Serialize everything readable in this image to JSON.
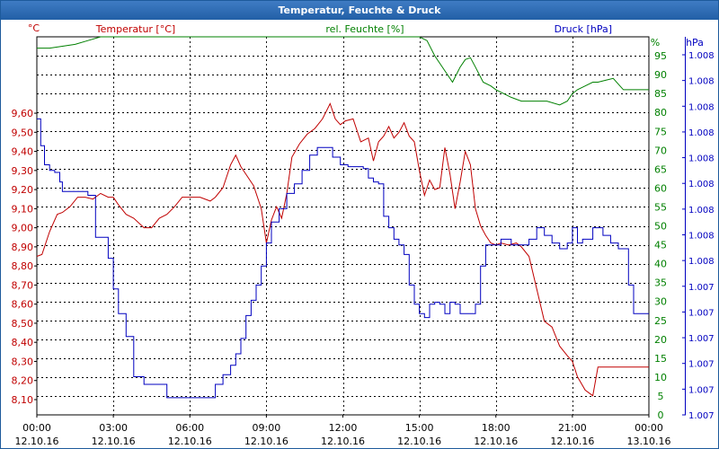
{
  "window": {
    "title": "Temperatur, Feuchte & Druck"
  },
  "colors": {
    "temperature": "#c00000",
    "humidity": "#008000",
    "pressure": "#0000c0",
    "title_bar": "#2d68ae",
    "grid": "#000000"
  },
  "chart_data": {
    "type": "line",
    "title": "Temperatur, Feuchte & Druck",
    "xlabel": "",
    "grid": true,
    "x_range": [
      "2016-10-12 00:00",
      "2016-10-13 00:00"
    ],
    "x_tick_labels": [
      {
        "time": "00:00",
        "date": "12.10.16"
      },
      {
        "time": "03:00",
        "date": "12.10.16"
      },
      {
        "time": "06:00",
        "date": "12.10.16"
      },
      {
        "time": "09:00",
        "date": "12.10.16"
      },
      {
        "time": "12:00",
        "date": "12.10.16"
      },
      {
        "time": "15:00",
        "date": "12.10.16"
      },
      {
        "time": "18:00",
        "date": "12.10.16"
      },
      {
        "time": "21:00",
        "date": "12.10.16"
      },
      {
        "time": "00:00",
        "date": "13.10.16"
      }
    ],
    "axes": {
      "temperature": {
        "label": "Temperatur [°C]",
        "unit": "°C",
        "ylim": [
          8.02,
          10.0
        ],
        "tick_labels": [
          "9,60",
          "9,50",
          "9,40",
          "9,30",
          "9,20",
          "9,10",
          "9,00",
          "8,90",
          "8,80",
          "8,70",
          "8,60",
          "8,50",
          "8,40",
          "8,30",
          "8,20",
          "8,10"
        ]
      },
      "humidity": {
        "label": "rel. Feuchte [%]",
        "unit": "%",
        "ylim": [
          0,
          100
        ],
        "tick_labels": [
          "95",
          "90",
          "85",
          "80",
          "75",
          "70",
          "65",
          "60",
          "55",
          "50",
          "45",
          "40",
          "35",
          "30",
          "25",
          "20",
          "15",
          "10",
          "5",
          "0"
        ]
      },
      "pressure": {
        "label": "Druck [hPa]",
        "unit": "hPa",
        "tick_labels": [
          "1.008",
          "1.008",
          "1.008",
          "1.008",
          "1.008",
          "1.008",
          "1.008",
          "1.008",
          "1.008",
          "1.007",
          "1.007",
          "1.007",
          "1.007",
          "1.007",
          "1.007"
        ]
      }
    },
    "series": [
      {
        "name": "Temperatur [°C]",
        "axis": "temperature",
        "x_hours": [
          0,
          0.2,
          0.5,
          0.8,
          1.0,
          1.3,
          1.6,
          1.9,
          2.2,
          2.5,
          2.8,
          3.0,
          3.2,
          3.5,
          3.8,
          4.2,
          4.5,
          4.8,
          5.1,
          5.4,
          5.7,
          6.0,
          6.4,
          6.8,
          7.0,
          7.3,
          7.6,
          7.8,
          8.0,
          8.2,
          8.5,
          8.8,
          9.0,
          9.2,
          9.4,
          9.6,
          9.8,
          10.0,
          10.3,
          10.6,
          10.9,
          11.2,
          11.5,
          11.7,
          11.9,
          12.1,
          12.4,
          12.7,
          13.0,
          13.2,
          13.4,
          13.6,
          13.8,
          14.0,
          14.2,
          14.4,
          14.6,
          14.8,
          15.0,
          15.2,
          15.4,
          15.6,
          15.8,
          16.0,
          16.2,
          16.4,
          16.6,
          16.8,
          17.0,
          17.2,
          17.4,
          17.6,
          17.8,
          18.0,
          18.2,
          18.5,
          18.8,
          19.0,
          19.3,
          19.6,
          19.9,
          20.2,
          20.5,
          20.8,
          21.0,
          21.2,
          21.5,
          21.8,
          22.0,
          22.2,
          22.4,
          22.6,
          22.8,
          23.0,
          23.3,
          23.6,
          24.0
        ],
        "values": [
          8.85,
          8.86,
          8.98,
          9.07,
          9.08,
          9.11,
          9.16,
          9.16,
          9.15,
          9.18,
          9.16,
          9.16,
          9.12,
          9.07,
          9.05,
          9.0,
          9.0,
          9.05,
          9.07,
          9.11,
          9.16,
          9.16,
          9.16,
          9.14,
          9.16,
          9.21,
          9.33,
          9.38,
          9.32,
          9.28,
          9.22,
          9.1,
          8.92,
          9.04,
          9.11,
          9.05,
          9.18,
          9.37,
          9.44,
          9.49,
          9.52,
          9.57,
          9.65,
          9.57,
          9.54,
          9.56,
          9.57,
          9.45,
          9.47,
          9.35,
          9.45,
          9.48,
          9.53,
          9.47,
          9.5,
          9.55,
          9.48,
          9.45,
          9.3,
          9.17,
          9.25,
          9.2,
          9.21,
          9.42,
          9.28,
          9.1,
          9.24,
          9.4,
          9.33,
          9.1,
          9.01,
          8.96,
          8.92,
          8.91,
          8.92,
          8.91,
          8.92,
          8.9,
          8.85,
          8.68,
          8.51,
          8.48,
          8.38,
          8.33,
          8.3,
          8.22,
          8.15,
          8.12,
          8.27,
          8.27,
          8.27,
          8.27,
          8.27,
          8.27,
          8.27,
          8.27,
          8.27
        ]
      },
      {
        "name": "rel. Feuchte [%]",
        "axis": "humidity",
        "x_hours": [
          0,
          0.5,
          1.0,
          1.5,
          2.0,
          2.5,
          3.0,
          3.5,
          4.0,
          5.0,
          6.0,
          7.0,
          8.0,
          9.0,
          10.0,
          11.0,
          12.0,
          13.0,
          14.0,
          14.6,
          15.0,
          15.3,
          15.6,
          16.0,
          16.3,
          16.6,
          16.8,
          17.0,
          17.2,
          17.5,
          17.8,
          18.0,
          18.3,
          18.6,
          19.0,
          19.5,
          20.0,
          20.5,
          20.8,
          21.0,
          21.2,
          21.5,
          21.8,
          22.0,
          22.3,
          22.6,
          23.0,
          23.5,
          24.0
        ],
        "values": [
          97,
          97,
          97.5,
          98,
          99,
          100,
          100,
          100,
          100,
          100,
          100,
          100,
          100,
          100,
          100,
          100,
          100,
          100,
          100,
          100,
          100,
          99,
          95,
          91,
          88,
          92,
          94,
          94.5,
          92,
          88,
          87,
          86,
          85,
          84,
          83,
          83,
          83,
          82,
          83,
          85,
          86,
          87,
          88,
          88,
          88.5,
          89,
          86,
          86,
          86
        ]
      },
      {
        "name": "Druck [hPa]",
        "axis": "pressure",
        "step": true,
        "x_hours": [
          0,
          0.15,
          0.3,
          0.5,
          0.7,
          0.9,
          1.0,
          1.3,
          1.6,
          2.0,
          2.3,
          2.8,
          3.0,
          3.2,
          3.5,
          3.8,
          4.2,
          4.5,
          4.8,
          5.1,
          5.4,
          5.7,
          6.0,
          6.4,
          6.7,
          7.0,
          7.3,
          7.6,
          7.8,
          8.0,
          8.2,
          8.4,
          8.6,
          8.8,
          9.0,
          9.2,
          9.5,
          9.8,
          10.1,
          10.4,
          10.7,
          11.0,
          11.3,
          11.6,
          11.9,
          12.2,
          12.5,
          12.8,
          13.0,
          13.2,
          13.4,
          13.6,
          13.8,
          14.0,
          14.2,
          14.4,
          14.6,
          14.8,
          15.0,
          15.2,
          15.4,
          15.6,
          15.8,
          16.0,
          16.2,
          16.4,
          16.6,
          16.8,
          17.0,
          17.2,
          17.4,
          17.6,
          17.8,
          18.0,
          18.2,
          18.4,
          18.6,
          18.8,
          19.0,
          19.3,
          19.6,
          19.9,
          20.2,
          20.5,
          20.8,
          21.0,
          21.2,
          21.4,
          21.6,
          21.8,
          22.0,
          22.2,
          22.5,
          22.8,
          23.0,
          23.2,
          23.4,
          23.6,
          23.8,
          24.0
        ],
        "axis_values": [
          9.57,
          9.43,
          9.33,
          9.3,
          9.29,
          9.24,
          9.19,
          9.19,
          9.19,
          9.17,
          8.95,
          8.84,
          8.68,
          8.55,
          8.43,
          8.22,
          8.18,
          8.18,
          8.18,
          8.11,
          8.11,
          8.11,
          8.11,
          8.11,
          8.11,
          8.18,
          8.23,
          8.28,
          8.34,
          8.42,
          8.54,
          8.62,
          8.7,
          8.8,
          8.92,
          9.03,
          9.1,
          9.18,
          9.23,
          9.3,
          9.38,
          9.42,
          9.42,
          9.37,
          9.33,
          9.32,
          9.32,
          9.31,
          9.26,
          9.24,
          9.23,
          9.06,
          9.0,
          8.94,
          8.91,
          8.86,
          8.7,
          8.6,
          8.55,
          8.53,
          8.6,
          8.61,
          8.6,
          8.55,
          8.61,
          8.6,
          8.55,
          8.55,
          8.55,
          8.6,
          8.8,
          8.91,
          8.91,
          8.91,
          8.94,
          8.94,
          8.91,
          8.91,
          8.91,
          8.94,
          9.0,
          8.96,
          8.92,
          8.89,
          8.92,
          9.0,
          8.92,
          8.94,
          8.94,
          9.0,
          9.0,
          8.96,
          8.92,
          8.89,
          8.89,
          8.7,
          8.55,
          8.55,
          8.55,
          8.55
        ]
      }
    ]
  }
}
